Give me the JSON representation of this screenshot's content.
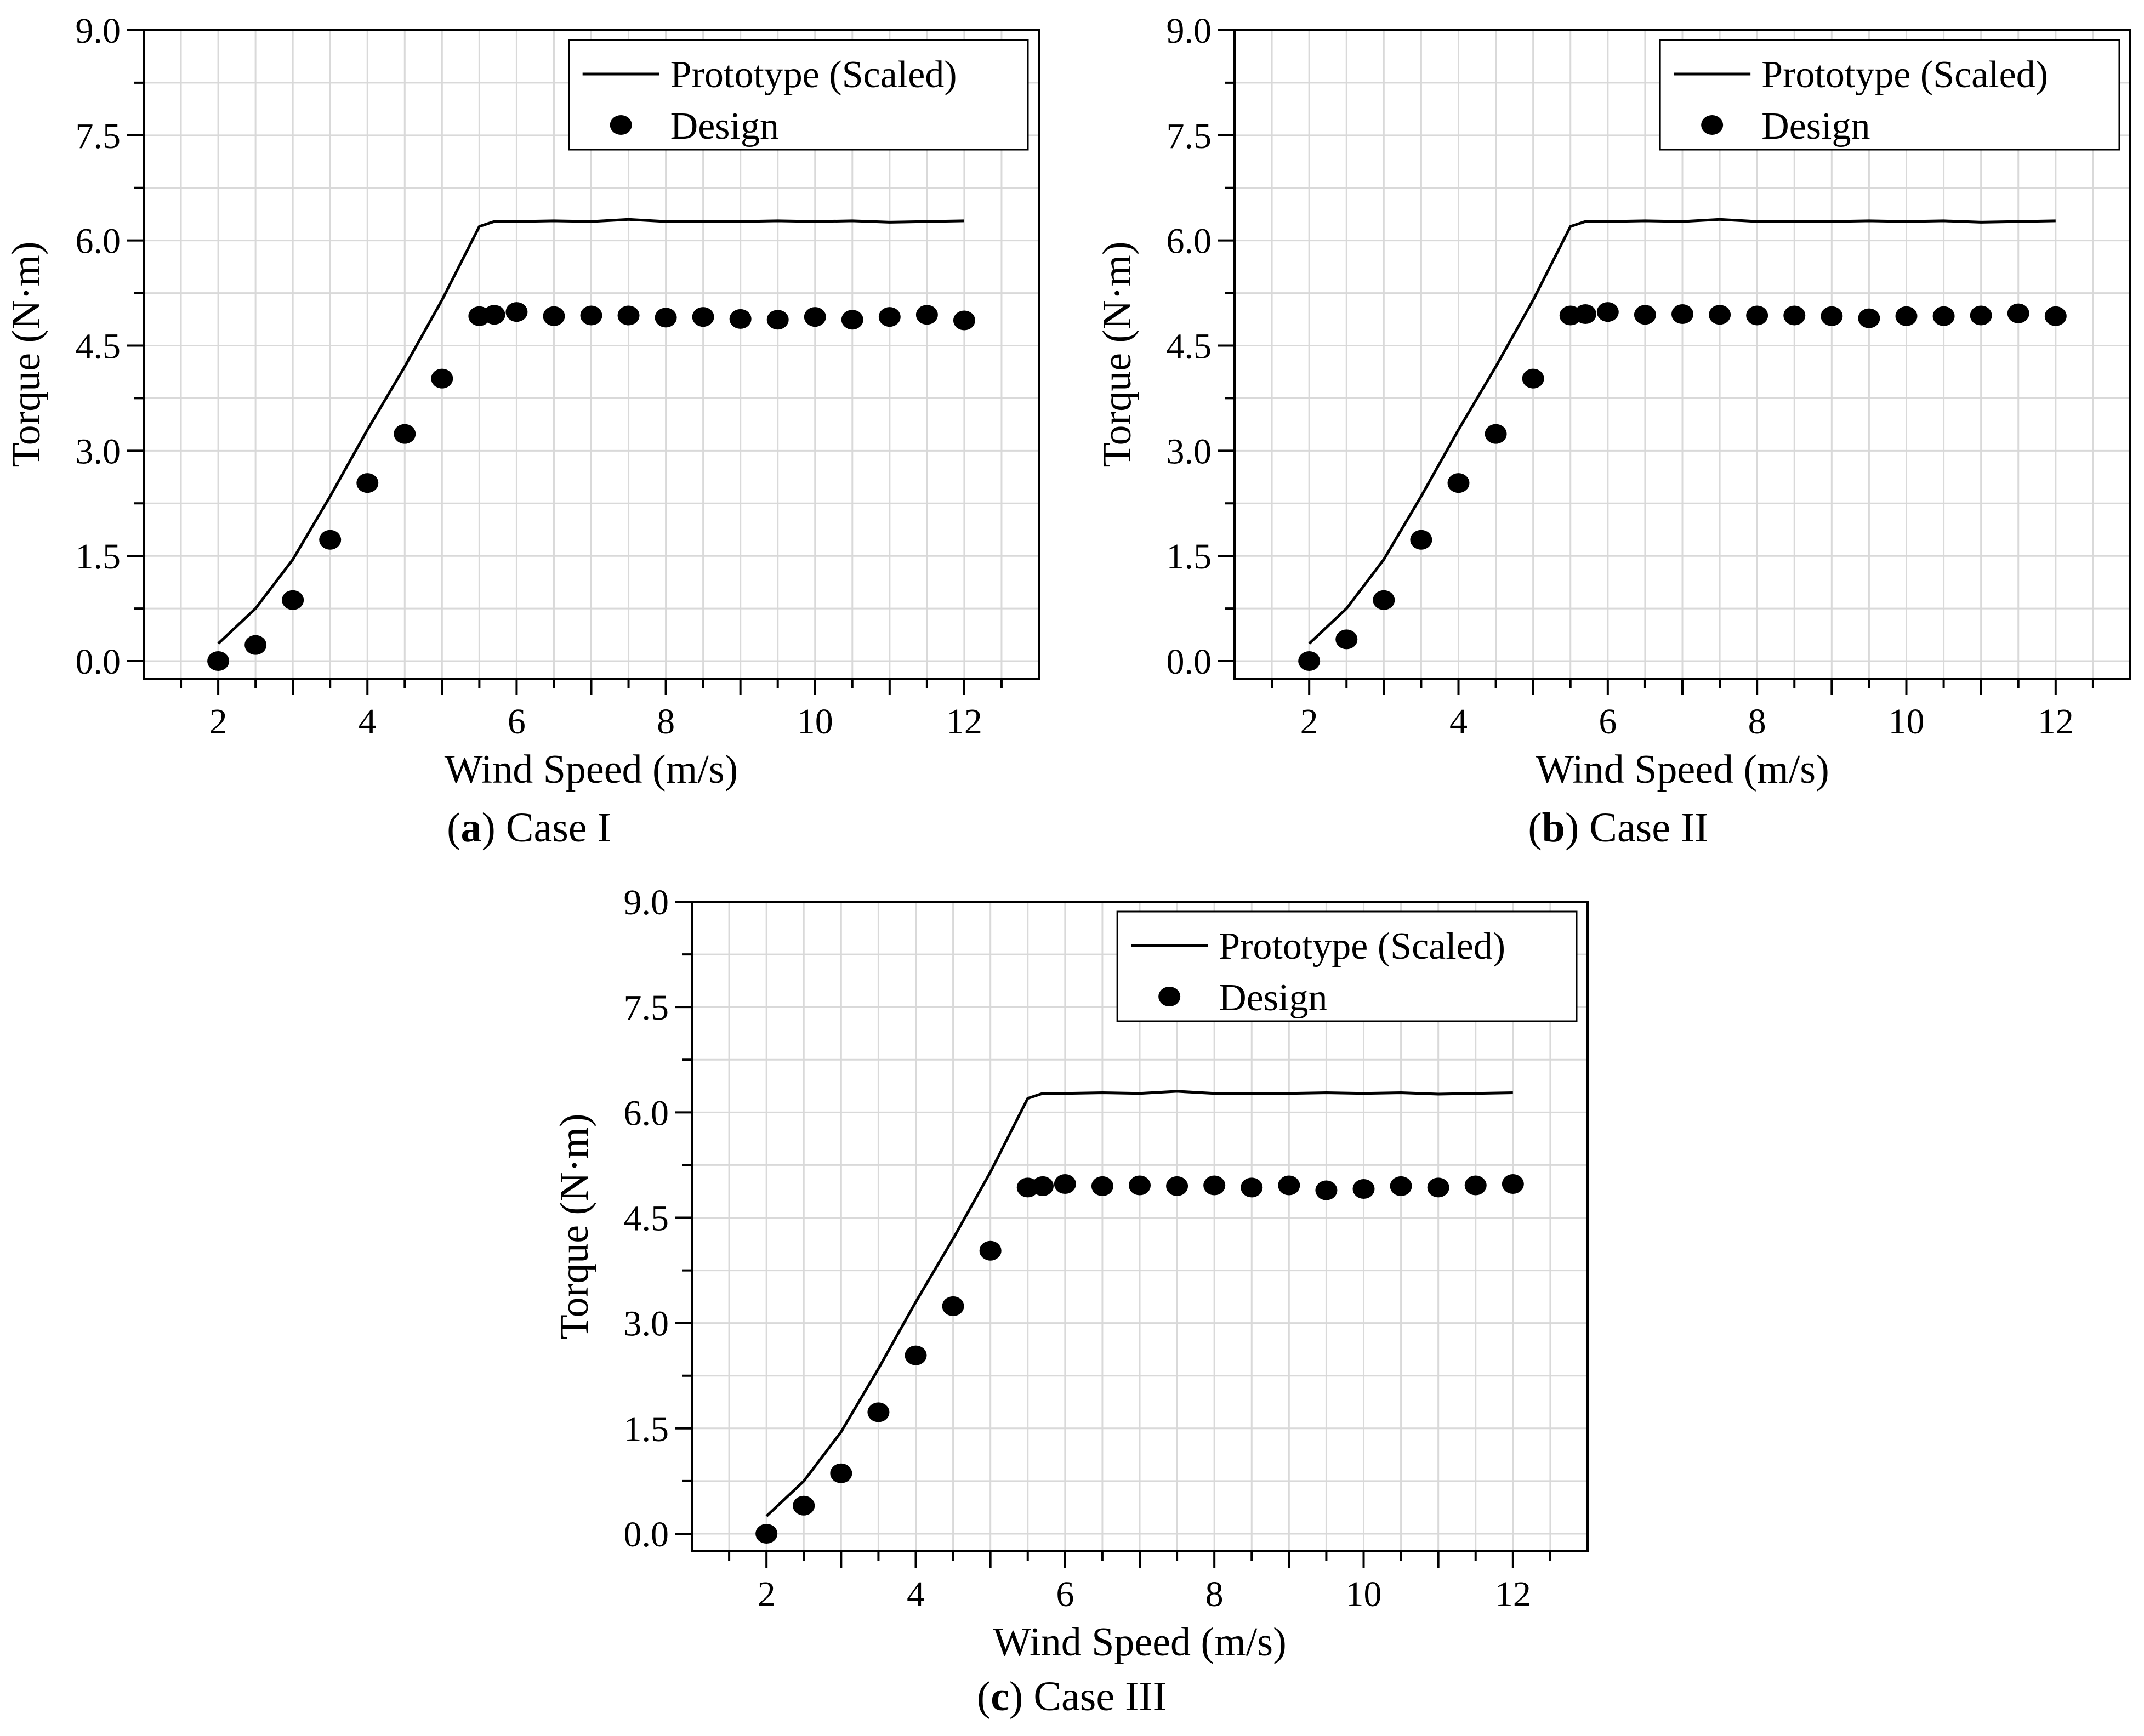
{
  "colors": {
    "line": "#000000",
    "marker": "#000000",
    "grid": "#d9d9d9",
    "axis": "#000000"
  },
  "chart_data": [
    {
      "type": "line",
      "caption_letter": "a",
      "caption_text": ") Case I",
      "xlabel": "Wind Speed (m/s)",
      "ylabel": "Torque (N·m)",
      "xlim": [
        1,
        13
      ],
      "ylim": [
        -0.25,
        9.0
      ],
      "xticks": [
        2,
        4,
        6,
        8,
        10,
        12
      ],
      "yticks": [
        "0.0",
        "1.5",
        "3.0",
        "4.5",
        "6.0",
        "7.5",
        "9.0"
      ],
      "grid": true,
      "legend": {
        "position": "top-right",
        "line_label": "Prototype (Scaled)",
        "marker_label": "Design"
      },
      "series": [
        {
          "name": "Prototype (Scaled)",
          "kind": "line",
          "x": [
            2,
            2.5,
            3,
            3.5,
            4,
            4.5,
            5,
            5.5,
            5.7,
            6,
            6.5,
            7,
            7.5,
            8,
            8.5,
            9,
            9.5,
            10,
            10.5,
            11,
            11.5,
            12
          ],
          "y": [
            0.25,
            0.75,
            1.45,
            2.35,
            3.3,
            4.2,
            5.15,
            6.2,
            6.27,
            6.27,
            6.28,
            6.27,
            6.3,
            6.27,
            6.27,
            6.27,
            6.28,
            6.27,
            6.28,
            6.26,
            6.27,
            6.28
          ]
        },
        {
          "name": "Design",
          "kind": "scatter",
          "x": [
            2,
            2.5,
            3,
            3.5,
            4,
            4.5,
            5,
            5.5,
            5.7,
            6,
            6.5,
            7,
            7.5,
            8,
            8.5,
            9,
            9.5,
            10,
            10.5,
            11,
            11.5,
            12
          ],
          "y": [
            0.0,
            0.23,
            0.87,
            1.73,
            2.54,
            3.24,
            4.03,
            4.92,
            4.94,
            4.98,
            4.92,
            4.93,
            4.93,
            4.9,
            4.91,
            4.88,
            4.87,
            4.91,
            4.87,
            4.91,
            4.94,
            4.86
          ]
        }
      ]
    },
    {
      "type": "line",
      "caption_letter": "b",
      "caption_text": ") Case II",
      "xlabel": "Wind Speed (m/s)",
      "ylabel": "Torque (N·m)",
      "xlim": [
        1,
        13
      ],
      "ylim": [
        -0.25,
        9.0
      ],
      "xticks": [
        2,
        4,
        6,
        8,
        10,
        12
      ],
      "yticks": [
        "0.0",
        "1.5",
        "3.0",
        "4.5",
        "6.0",
        "7.5",
        "9.0"
      ],
      "grid": true,
      "legend": {
        "position": "top-right",
        "line_label": "Prototype (Scaled)",
        "marker_label": "Design"
      },
      "series": [
        {
          "name": "Prototype (Scaled)",
          "kind": "line",
          "x": [
            2,
            2.5,
            3,
            3.5,
            4,
            4.5,
            5,
            5.5,
            5.7,
            6,
            6.5,
            7,
            7.5,
            8,
            8.5,
            9,
            9.5,
            10,
            10.5,
            11,
            11.5,
            12
          ],
          "y": [
            0.25,
            0.75,
            1.45,
            2.35,
            3.3,
            4.2,
            5.15,
            6.2,
            6.27,
            6.27,
            6.28,
            6.27,
            6.3,
            6.27,
            6.27,
            6.27,
            6.28,
            6.27,
            6.28,
            6.26,
            6.27,
            6.28
          ]
        },
        {
          "name": "Design",
          "kind": "scatter",
          "x": [
            2,
            2.5,
            3,
            3.5,
            4,
            4.5,
            5,
            5.5,
            5.7,
            6,
            6.5,
            7,
            7.5,
            8,
            8.5,
            9,
            9.5,
            10,
            10.5,
            11,
            11.5,
            12
          ],
          "y": [
            0.0,
            0.31,
            0.87,
            1.73,
            2.54,
            3.24,
            4.03,
            4.93,
            4.95,
            4.98,
            4.94,
            4.95,
            4.94,
            4.93,
            4.93,
            4.92,
            4.89,
            4.92,
            4.92,
            4.93,
            4.96,
            4.92
          ]
        }
      ]
    },
    {
      "type": "line",
      "caption_letter": "c",
      "caption_text": ") Case III",
      "xlabel": "Wind Speed (m/s)",
      "ylabel": "Torque (N·m)",
      "xlim": [
        1,
        13
      ],
      "ylim": [
        -0.25,
        9.0
      ],
      "xticks": [
        2,
        4,
        6,
        8,
        10,
        12
      ],
      "yticks": [
        "0.0",
        "1.5",
        "3.0",
        "4.5",
        "6.0",
        "7.5",
        "9.0"
      ],
      "grid": true,
      "legend": {
        "position": "top-right",
        "line_label": "Prototype (Scaled)",
        "marker_label": "Design"
      },
      "series": [
        {
          "name": "Prototype (Scaled)",
          "kind": "line",
          "x": [
            2,
            2.5,
            3,
            3.5,
            4,
            4.5,
            5,
            5.5,
            5.7,
            6,
            6.5,
            7,
            7.5,
            8,
            8.5,
            9,
            9.5,
            10,
            10.5,
            11,
            11.5,
            12
          ],
          "y": [
            0.25,
            0.75,
            1.45,
            2.35,
            3.3,
            4.2,
            5.15,
            6.2,
            6.27,
            6.27,
            6.28,
            6.27,
            6.3,
            6.27,
            6.27,
            6.27,
            6.28,
            6.27,
            6.28,
            6.26,
            6.27,
            6.28
          ]
        },
        {
          "name": "Design",
          "kind": "scatter",
          "x": [
            2,
            2.5,
            3,
            3.5,
            4,
            4.5,
            5,
            5.5,
            5.7,
            6,
            6.5,
            7,
            7.5,
            8,
            8.5,
            9,
            9.5,
            10,
            10.5,
            11,
            11.5,
            12
          ],
          "y": [
            0.0,
            0.4,
            0.86,
            1.73,
            2.54,
            3.24,
            4.03,
            4.93,
            4.95,
            4.98,
            4.95,
            4.96,
            4.95,
            4.96,
            4.93,
            4.96,
            4.89,
            4.91,
            4.95,
            4.93,
            4.96,
            4.98
          ]
        }
      ]
    }
  ]
}
